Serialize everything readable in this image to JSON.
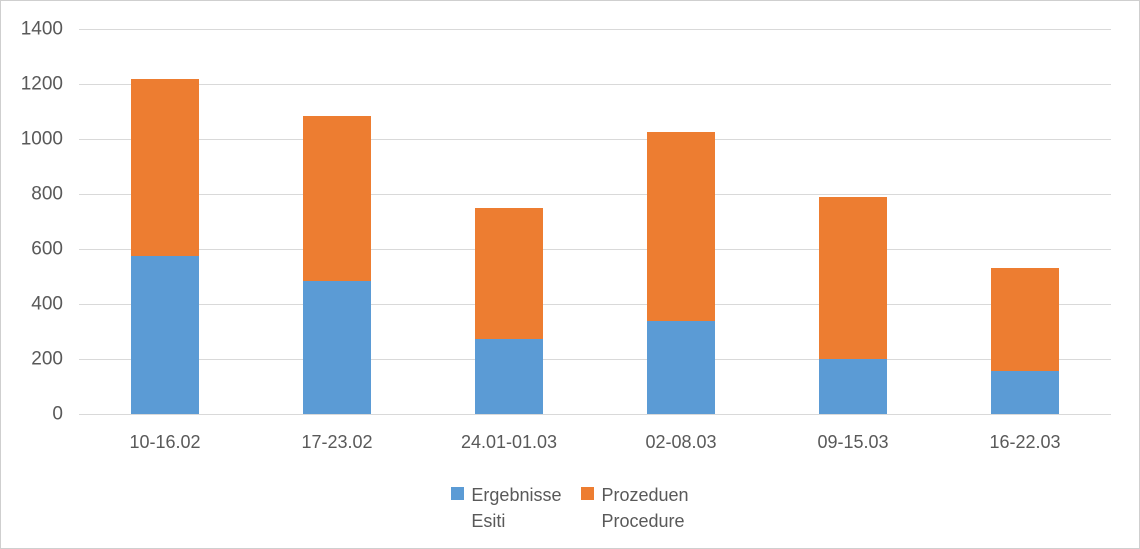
{
  "colors": {
    "series_blue": "#5B9BD5",
    "series_orange": "#ED7D31",
    "gridline": "#D9D9D9",
    "text": "#595959",
    "frame_border": "#CFCFCF",
    "background": "#FFFFFF"
  },
  "chart_data": {
    "type": "bar",
    "stacked": true,
    "title": "",
    "xlabel": "",
    "ylabel": "",
    "categories": [
      "10-16.02",
      "17-23.02",
      "24.01-01.03",
      "02-08.03",
      "09-15.03",
      "16-22.03"
    ],
    "series": [
      {
        "name": "Ergebnisse Esiti",
        "legend_lines": [
          "Ergebnisse",
          "Esiti"
        ],
        "color": "#5B9BD5",
        "values": [
          575,
          483,
          272,
          338,
          200,
          158
        ]
      },
      {
        "name": "Prozeduen Procedure",
        "legend_lines": [
          "Prozeduen",
          "Procedure"
        ],
        "color": "#ED7D31",
        "values": [
          645,
          600,
          476,
          687,
          590,
          373
        ]
      }
    ],
    "stack_totals": [
      1220,
      1083,
      748,
      1025,
      790,
      531
    ],
    "ylim": [
      0,
      1400
    ],
    "ytick_step": 200,
    "yticks": [
      "0",
      "200",
      "400",
      "600",
      "800",
      "1000",
      "1200",
      "1400"
    ],
    "grid": true,
    "legend_position": "bottom"
  }
}
